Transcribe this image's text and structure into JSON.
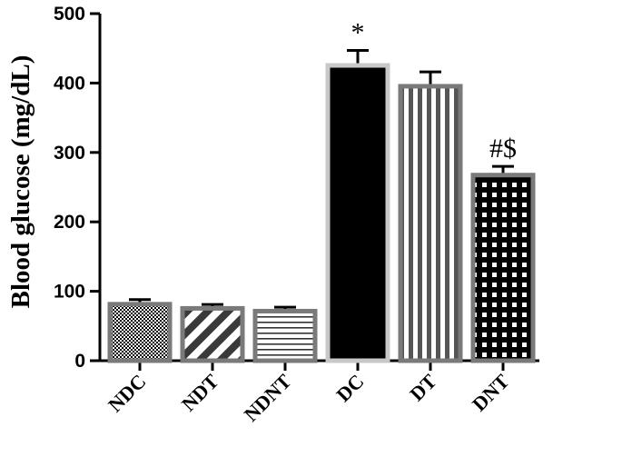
{
  "chart_data": {
    "type": "bar",
    "title": "",
    "xlabel": "",
    "ylabel": "Blood glucose (mg/dL)",
    "ylim": [
      0,
      500
    ],
    "yticks": [
      "0",
      "100",
      "200",
      "300",
      "400",
      "500"
    ],
    "categories": [
      "NDC",
      "NDT",
      "NDNT",
      "DC",
      "DT",
      "DNT"
    ],
    "values": [
      84,
      78,
      74,
      428,
      398,
      270
    ],
    "errors": [
      4,
      3,
      3,
      19,
      18,
      10
    ],
    "annotations": [
      "",
      "",
      "",
      "*",
      "",
      "#$"
    ],
    "patterns": [
      "checker",
      "diagonal",
      "horizontal",
      "solid",
      "vertical",
      "grid"
    ],
    "colors": {
      "fill": "#000000",
      "border": "#7a7a7a",
      "border_dc": "#c8c8c8",
      "axis": "#000000"
    },
    "grid": false
  }
}
